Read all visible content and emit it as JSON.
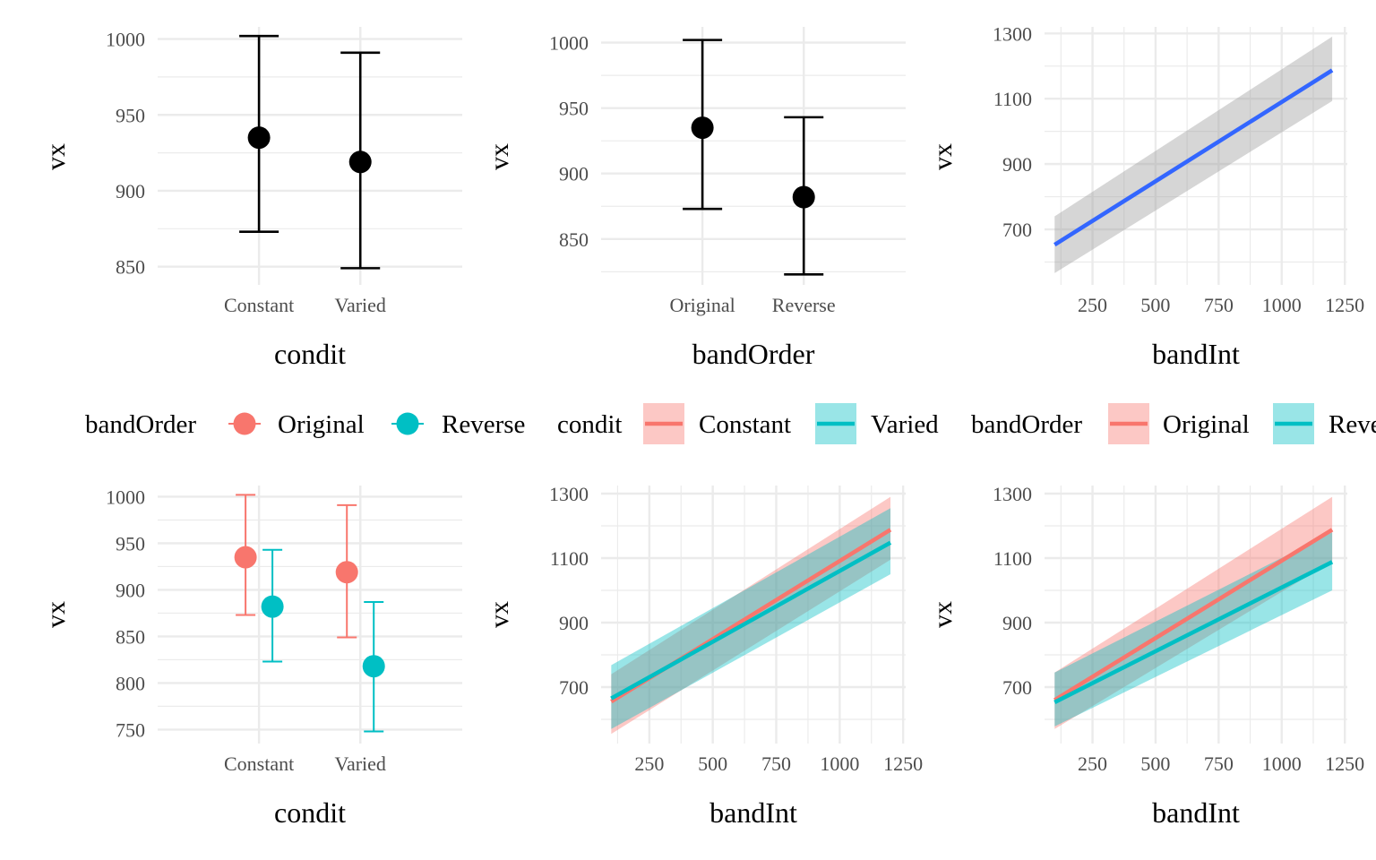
{
  "colors": {
    "original": "#F8766D",
    "reverse": "#00BFC4",
    "fit": "#3366FF",
    "ribbon_grey": "#999999",
    "grid": "#EBEBEB",
    "text_axis": "#4D4D4D",
    "text": "#000000"
  },
  "legends": [
    {
      "title": "bandOrder",
      "key": "point",
      "items": [
        {
          "label": "Original",
          "color": "#F8766D"
        },
        {
          "label": "Reverse",
          "color": "#00BFC4"
        }
      ]
    },
    {
      "title": "condit",
      "key": "line-ribbon",
      "items": [
        {
          "label": "Constant",
          "color": "#F8766D"
        },
        {
          "label": "Varied",
          "color": "#00BFC4"
        }
      ]
    },
    {
      "title": "bandOrder",
      "key": "line-ribbon",
      "items": [
        {
          "label": "Original",
          "color": "#F8766D"
        },
        {
          "label": "Reve",
          "color": "#00BFC4"
        }
      ]
    }
  ],
  "chart_data": [
    {
      "type": "errorbar",
      "xlabel": "condit",
      "ylabel": "vx",
      "categories": [
        "Constant",
        "Varied"
      ],
      "ylim": [
        838,
        1008
      ],
      "yticks": [
        850,
        900,
        950,
        1000
      ],
      "grid": true,
      "series": [
        {
          "values": [
            935,
            919
          ],
          "lower": [
            873,
            849
          ],
          "upper": [
            1002,
            991
          ],
          "color": "#000000"
        }
      ]
    },
    {
      "type": "errorbar",
      "xlabel": "bandOrder",
      "ylabel": "vx",
      "categories": [
        "Original",
        "Reverse"
      ],
      "ylim": [
        815,
        1012
      ],
      "yticks": [
        850,
        900,
        950,
        1000
      ],
      "grid": true,
      "series": [
        {
          "values": [
            935,
            882
          ],
          "lower": [
            873,
            823
          ],
          "upper": [
            1002,
            943
          ],
          "color": "#000000"
        }
      ]
    },
    {
      "type": "line",
      "xlabel": "bandInt",
      "ylabel": "vx",
      "xlim": [
        60,
        1260
      ],
      "ylim": [
        530,
        1320
      ],
      "xticks": [
        250,
        500,
        750,
        1000,
        1250
      ],
      "yticks": [
        700,
        900,
        1100,
        1300
      ],
      "grid": true,
      "series": [
        {
          "x": [
            100,
            1200
          ],
          "y": [
            653,
            1187
          ],
          "lower": [
            566,
            1093
          ],
          "upper": [
            740,
            1290
          ],
          "color": "#3366FF",
          "ribbon": "#999999"
        }
      ]
    },
    {
      "type": "errorbar",
      "xlabel": "condit",
      "ylabel": "vx",
      "categories": [
        "Constant",
        "Varied"
      ],
      "ylim": [
        735,
        1012
      ],
      "yticks": [
        750,
        800,
        850,
        900,
        950,
        1000
      ],
      "grid": true,
      "dodge": true,
      "series": [
        {
          "name": "Original",
          "values": [
            935,
            919
          ],
          "lower": [
            873,
            849
          ],
          "upper": [
            1002,
            991
          ],
          "color": "#F8766D"
        },
        {
          "name": "Reverse",
          "values": [
            882,
            818
          ],
          "lower": [
            823,
            748
          ],
          "upper": [
            943,
            887
          ],
          "color": "#00BFC4"
        }
      ]
    },
    {
      "type": "line",
      "xlabel": "bandInt",
      "ylabel": "vx",
      "xlim": [
        60,
        1260
      ],
      "ylim": [
        525,
        1325
      ],
      "xticks": [
        250,
        500,
        750,
        1000,
        1250
      ],
      "yticks": [
        700,
        900,
        1100,
        1300
      ],
      "grid": true,
      "series": [
        {
          "name": "Constant",
          "x": [
            100,
            1200
          ],
          "y": [
            655,
            1188
          ],
          "lower": [
            555,
            1095
          ],
          "upper": [
            740,
            1290
          ],
          "color": "#F8766D"
        },
        {
          "name": "Varied",
          "x": [
            100,
            1200
          ],
          "y": [
            665,
            1148
          ],
          "lower": [
            570,
            1050
          ],
          "upper": [
            768,
            1255
          ],
          "color": "#00BFC4"
        }
      ]
    },
    {
      "type": "line",
      "xlabel": "bandInt",
      "ylabel": "vx",
      "xlim": [
        60,
        1260
      ],
      "ylim": [
        525,
        1325
      ],
      "xticks": [
        250,
        500,
        750,
        1000,
        1250
      ],
      "yticks": [
        700,
        900,
        1100,
        1300
      ],
      "grid": true,
      "series": [
        {
          "name": "Original",
          "x": [
            100,
            1200
          ],
          "y": [
            660,
            1188
          ],
          "lower": [
            570,
            1090
          ],
          "upper": [
            745,
            1290
          ],
          "color": "#F8766D"
        },
        {
          "name": "Reverse",
          "x": [
            100,
            1200
          ],
          "y": [
            653,
            1088
          ],
          "lower": [
            578,
            1000
          ],
          "upper": [
            745,
            1180
          ],
          "color": "#00BFC4"
        }
      ]
    }
  ]
}
